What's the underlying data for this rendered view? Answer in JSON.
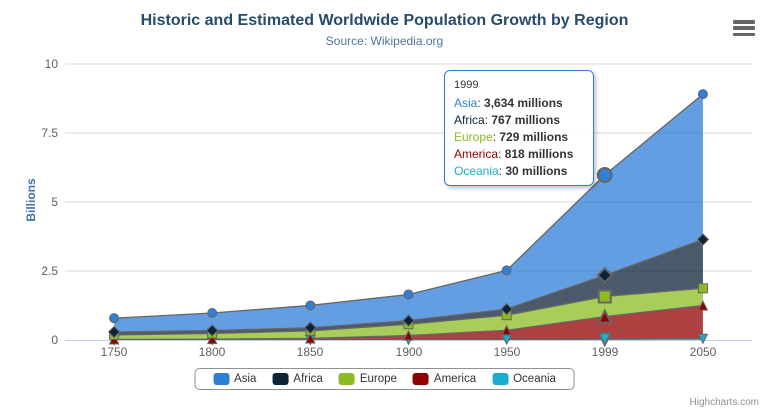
{
  "title": "Historic and Estimated Worldwide Population Growth by Region",
  "subtitle": "Source: Wikipedia.org",
  "credits": "Highcharts.com",
  "context_menu_icon": "hamburger-icon",
  "chart_data": {
    "type": "area",
    "stacking": "normal",
    "title": "Historic and Estimated Worldwide Population Growth by Region",
    "subtitle": "Source: Wikipedia.org",
    "categories": [
      "1750",
      "1800",
      "1850",
      "1900",
      "1950",
      "1999",
      "2050"
    ],
    "unit": "millions",
    "series": [
      {
        "name": "Asia",
        "color": "#2f7ed8",
        "marker": "circle",
        "values": [
          502,
          635,
          809,
          947,
          1402,
          3634,
          5268
        ]
      },
      {
        "name": "Africa",
        "color": "#0d233a",
        "marker": "diamond",
        "values": [
          106,
          107,
          111,
          133,
          221,
          767,
          1766
        ]
      },
      {
        "name": "Europe",
        "color": "#8bbc21",
        "marker": "square",
        "values": [
          163,
          203,
          276,
          408,
          547,
          729,
          628
        ]
      },
      {
        "name": "America",
        "color": "#910000",
        "marker": "triangle",
        "values": [
          18,
          31,
          54,
          156,
          339,
          818,
          1201
        ]
      },
      {
        "name": "Oceania",
        "color": "#1aadce",
        "marker": "triangle-down",
        "values": [
          2,
          2,
          2,
          6,
          13,
          30,
          46
        ]
      }
    ],
    "ylabel": "Billions",
    "xlabel": "",
    "yticks": [
      "0",
      "2.5",
      "5",
      "7.5",
      "10"
    ],
    "ylim": [
      0,
      10
    ],
    "grid": true,
    "legend_position": "bottom",
    "grid_color": "#d8d8d8",
    "axis_line_color": "#c0d0e0",
    "series_line_color": "#666666"
  },
  "tooltip": {
    "header": "1999",
    "separator": ": ",
    "rows": [
      {
        "name": "Asia",
        "value": "3,634 millions"
      },
      {
        "name": "Africa",
        "value": "767 millions"
      },
      {
        "name": "Europe",
        "value": "729 millions"
      },
      {
        "name": "America",
        "value": "818 millions"
      },
      {
        "name": "Oceania",
        "value": "30 millions"
      }
    ]
  }
}
